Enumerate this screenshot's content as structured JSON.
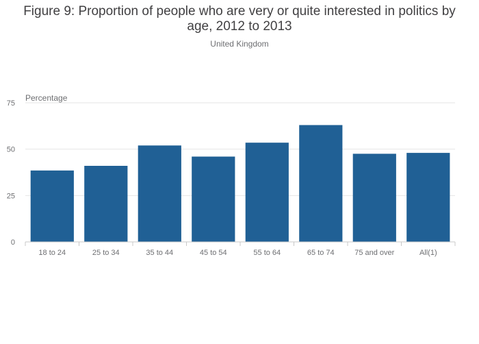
{
  "chart_data": {
    "type": "bar",
    "title": "Figure 9: Proportion of people who are very or quite interested in politics by age, 2012 to 2013",
    "subtitle": "United Kingdom",
    "ylabel": "Percentage",
    "xlabel": "",
    "categories": [
      "18 to 24",
      "25 to 34",
      "35 to 44",
      "45 to 54",
      "55 to 64",
      "65 to 74",
      "75 and over",
      "All(1)"
    ],
    "values": [
      38.5,
      41,
      52,
      46,
      53.5,
      63,
      47.5,
      48
    ],
    "ylim": [
      0,
      75
    ],
    "yticks": [
      0,
      25,
      50,
      75
    ],
    "grid": true,
    "legend": "none",
    "bar_color": "#206095",
    "grid_color": "#e5e5e5",
    "axis_color": "#c8c8c8"
  }
}
